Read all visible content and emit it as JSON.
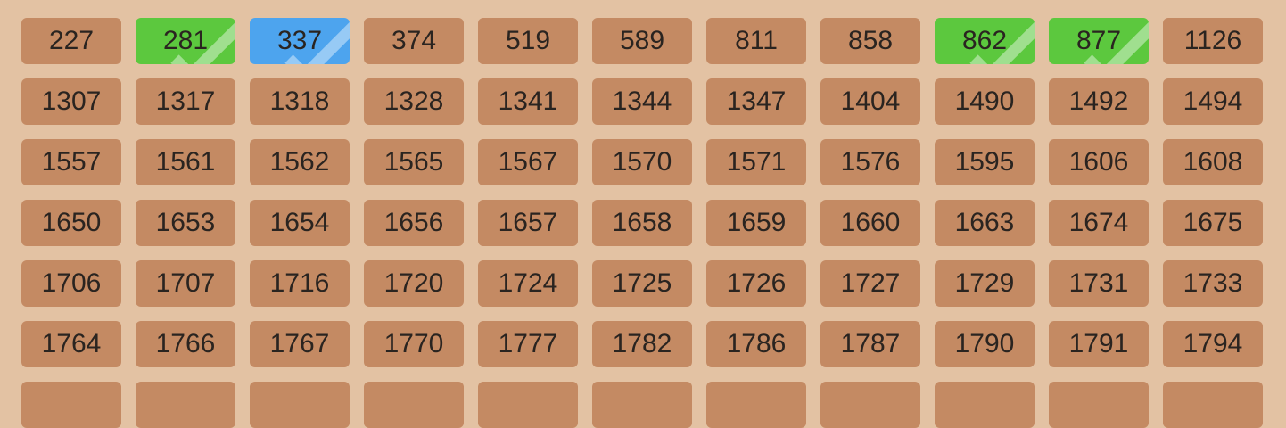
{
  "tiles": [
    [
      "227",
      "281",
      "337",
      "374",
      "519",
      "589",
      "811",
      "858",
      "862",
      "877",
      "1126"
    ],
    [
      "1307",
      "1317",
      "1318",
      "1328",
      "1341",
      "1344",
      "1347",
      "1404",
      "1490",
      "1492",
      "1494"
    ],
    [
      "1557",
      "1561",
      "1562",
      "1565",
      "1567",
      "1570",
      "1571",
      "1576",
      "1595",
      "1606",
      "1608"
    ],
    [
      "1650",
      "1653",
      "1654",
      "1656",
      "1657",
      "1658",
      "1659",
      "1660",
      "1663",
      "1674",
      "1675"
    ],
    [
      "1706",
      "1707",
      "1716",
      "1720",
      "1724",
      "1725",
      "1726",
      "1727",
      "1729",
      "1731",
      "1733"
    ],
    [
      "1764",
      "1766",
      "1767",
      "1770",
      "1777",
      "1782",
      "1786",
      "1787",
      "1790",
      "1791",
      "1794"
    ],
    [
      "",
      "",
      "",
      "",
      "",
      "",
      "",
      "",
      "",
      "",
      ""
    ]
  ],
  "states": {
    "281": "selected-green",
    "337": "selected-blue",
    "862": "selected-green",
    "877": "selected-green"
  },
  "colors": {
    "background": "#e3c2a3",
    "tile": "#c48a63",
    "green": "#5cc83e",
    "blue": "#4da4ee",
    "text": "#2a2420"
  },
  "icons": {
    "selected": "check-icon"
  }
}
